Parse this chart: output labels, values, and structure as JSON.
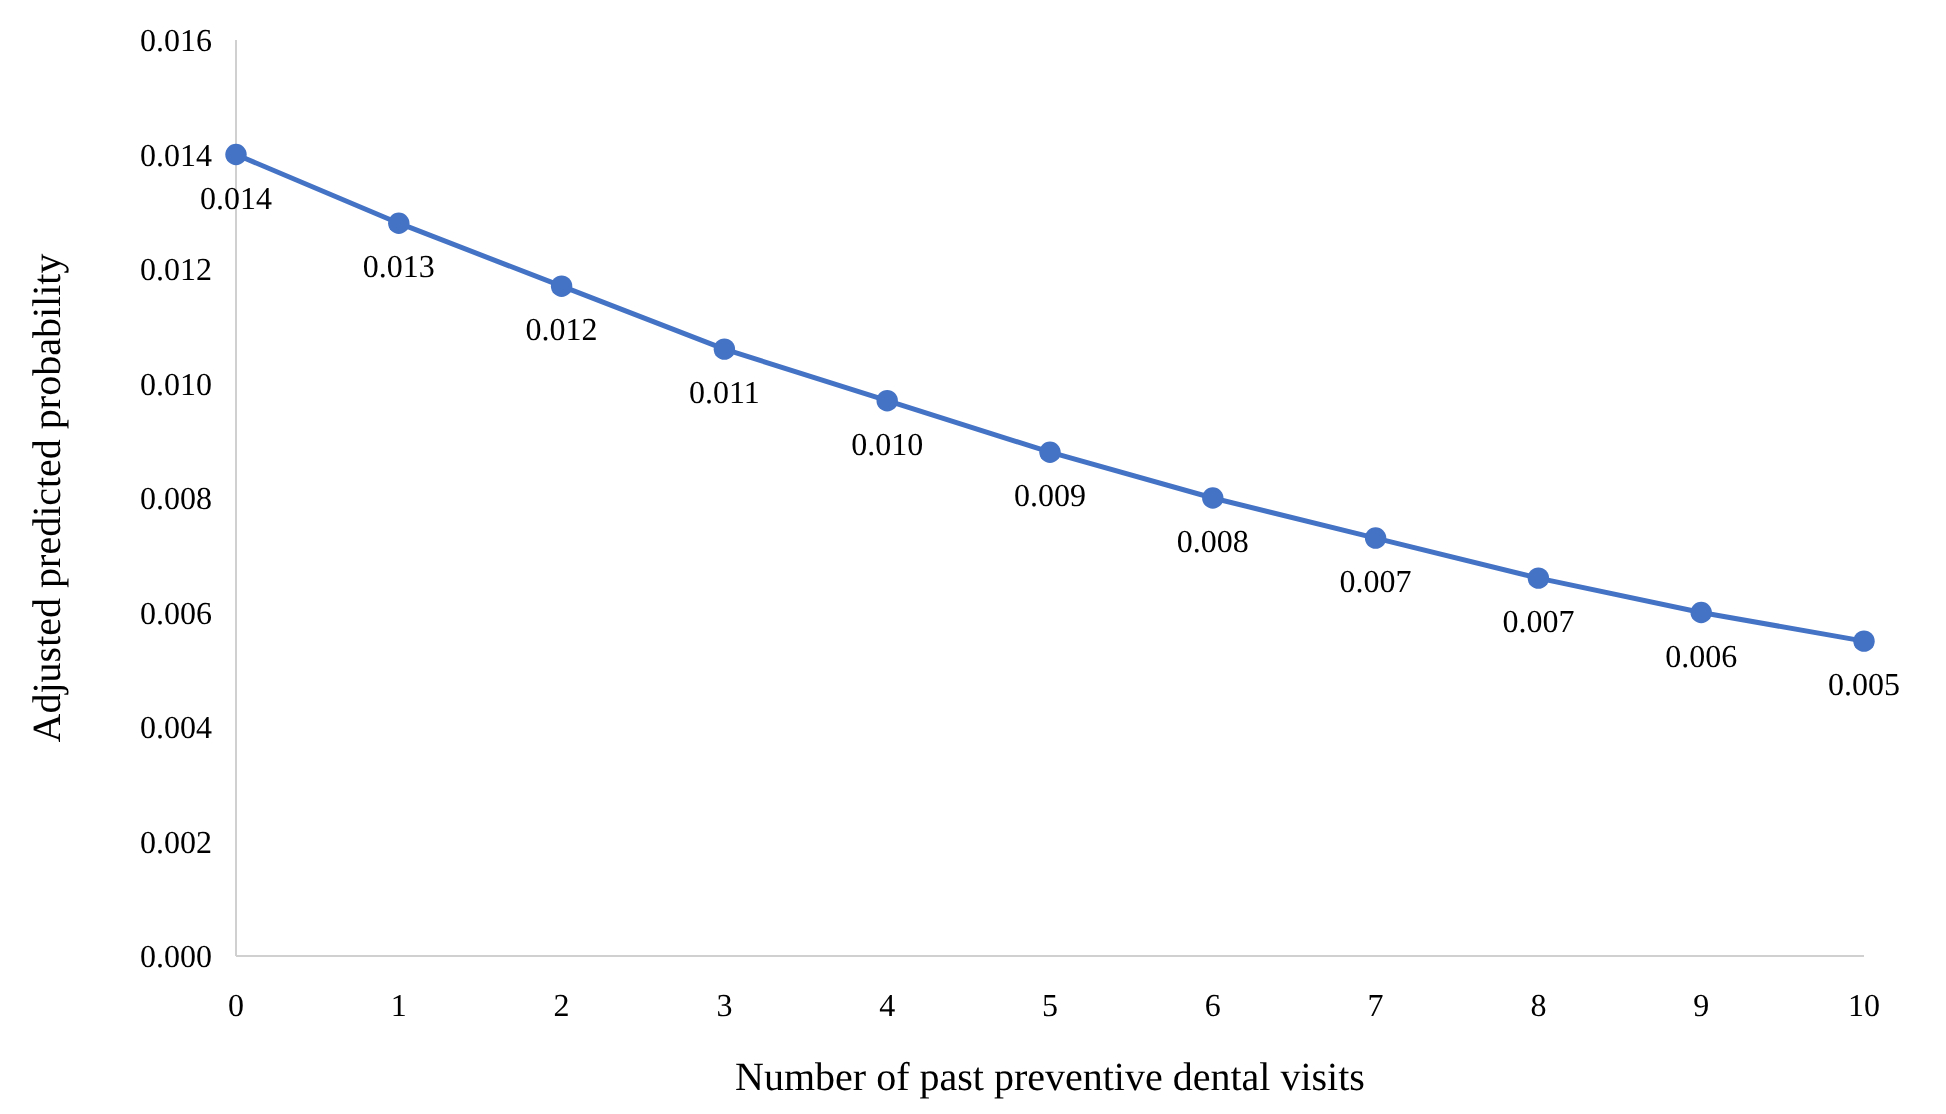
{
  "chart_data": {
    "type": "line",
    "xlabel": "Number of past preventive dental visits",
    "ylabel": "Adjusted predicted probability",
    "categories": [
      "0",
      "1",
      "2",
      "3",
      "4",
      "5",
      "6",
      "7",
      "8",
      "9",
      "10"
    ],
    "series": [
      {
        "color": "#4472c4",
        "values": [
          0.014,
          0.0128,
          0.0117,
          0.0106,
          0.0097,
          0.0088,
          0.008,
          0.0073,
          0.0066,
          0.006,
          0.0055
        ],
        "value_labels": [
          "0.014",
          "0.013",
          "0.012",
          "0.011",
          "0.010",
          "0.009",
          "0.008",
          "0.007",
          "0.007",
          "0.006",
          "0.005"
        ]
      }
    ],
    "ylim": [
      0,
      0.016
    ],
    "yticks": [
      {
        "value": 0,
        "label": "0.000"
      },
      {
        "value": 0.002,
        "label": "0.002"
      },
      {
        "value": 0.004,
        "label": "0.004"
      },
      {
        "value": 0.006,
        "label": "0.006"
      },
      {
        "value": 0.008,
        "label": "0.008"
      },
      {
        "value": 0.01,
        "label": "0.010"
      },
      {
        "value": 0.012,
        "label": "0.012"
      },
      {
        "value": 0.014,
        "label": "0.014"
      },
      {
        "value": 0.016,
        "label": "0.016"
      }
    ],
    "grid": false,
    "marker": "circle",
    "line_style": "solid"
  }
}
